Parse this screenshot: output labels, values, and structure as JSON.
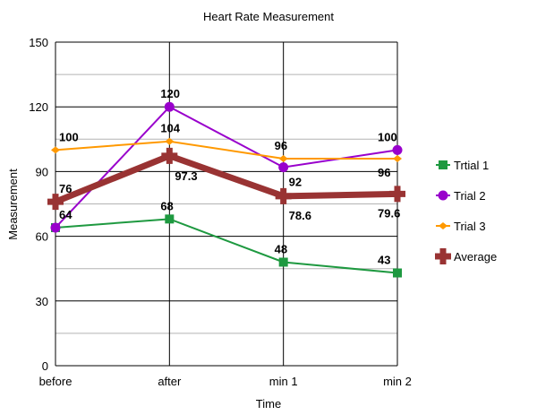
{
  "chart_data": {
    "type": "line",
    "title": "Heart Rate Measurement",
    "xlabel": "Time",
    "ylabel": "Measurement",
    "categories": [
      "before",
      "after",
      "min 1",
      "min 2"
    ],
    "ylim": [
      0,
      150
    ],
    "yticks": [
      0,
      30,
      60,
      90,
      120,
      150
    ],
    "minor_grid": [
      15,
      45,
      75,
      105,
      135
    ],
    "grid": true,
    "legend_position": "right",
    "series": [
      {
        "name": "Trtial 1",
        "values": [
          64,
          68,
          48,
          43
        ],
        "labels": [
          "64",
          "68",
          "48",
          "43"
        ],
        "color": "#1e9940",
        "marker": "square"
      },
      {
        "name": "Trial 2",
        "values": [
          64,
          120,
          92,
          100
        ],
        "labels": [
          null,
          "120",
          "92",
          "100"
        ],
        "color": "#9900cc",
        "marker": "circle"
      },
      {
        "name": "Trial 3",
        "values": [
          100,
          104,
          96,
          96
        ],
        "labels": [
          "100",
          "104",
          "96",
          "96"
        ],
        "color": "#ff9900",
        "marker": "diamond"
      },
      {
        "name": "Average",
        "values": [
          76,
          97.3,
          78.6,
          79.6
        ],
        "labels": [
          "76",
          "97.3",
          "78.6",
          "79.6"
        ],
        "color": "#993333",
        "marker": "plus"
      }
    ]
  }
}
